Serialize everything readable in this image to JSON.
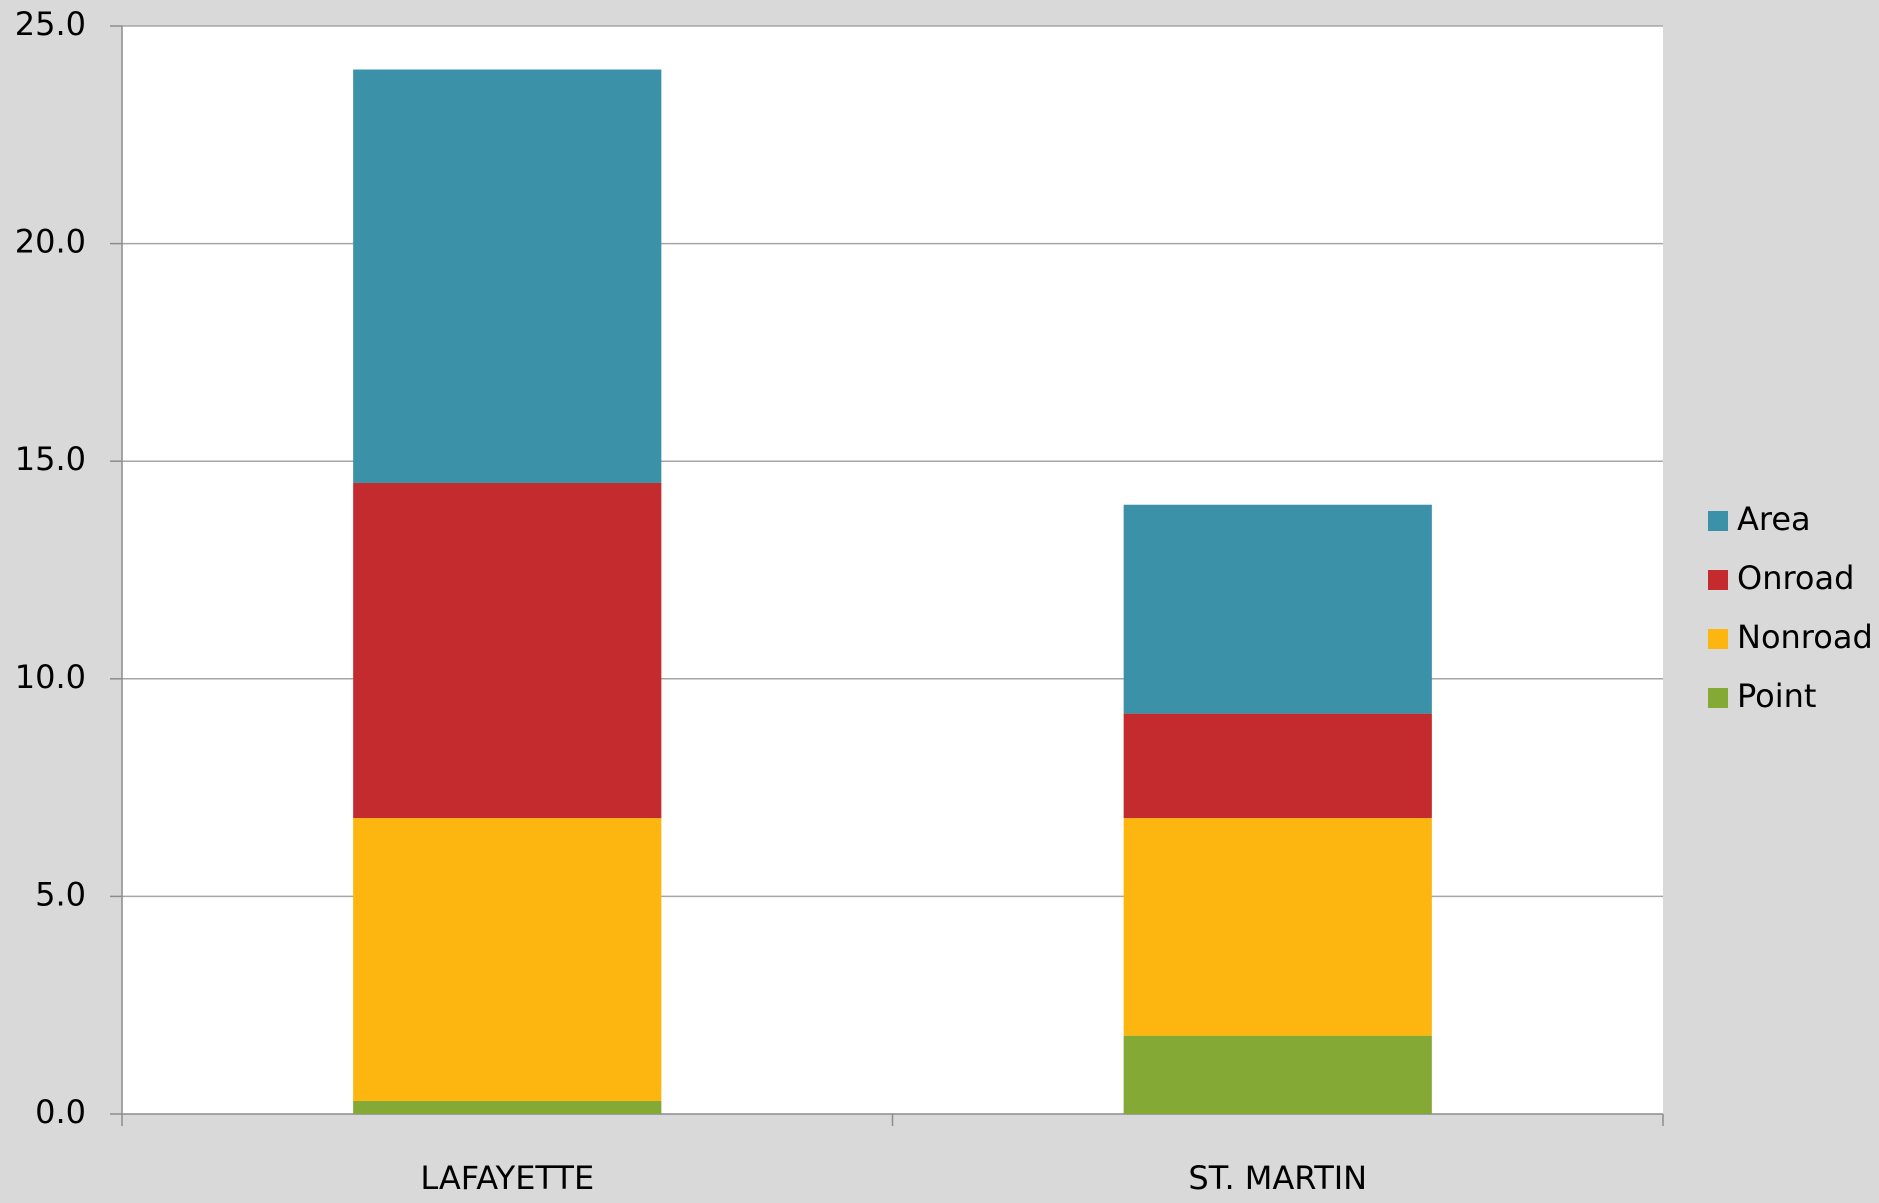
{
  "chart_data": {
    "type": "stacked_bar",
    "categories": [
      "LAFAYETTE",
      "ST. MARTIN"
    ],
    "series": [
      {
        "name": "Point",
        "color": "#85a935",
        "values": [
          0.3,
          1.8
        ]
      },
      {
        "name": "Nonroad",
        "color": "#fdb50f",
        "values": [
          6.5,
          5.0
        ]
      },
      {
        "name": "Onroad",
        "color": "#c32b2e",
        "values": [
          7.7,
          2.4
        ]
      },
      {
        "name": "Area",
        "color": "#3a91a8",
        "values": [
          9.5,
          4.8
        ]
      }
    ],
    "ylim": [
      0,
      25
    ],
    "yticks": [
      {
        "value": 0,
        "label": "0.0"
      },
      {
        "value": 5,
        "label": "5.0"
      },
      {
        "value": 10,
        "label": "10.0"
      },
      {
        "value": 15,
        "label": "15.0"
      },
      {
        "value": 20,
        "label": "20.0"
      },
      {
        "value": 25,
        "label": "25.0"
      }
    ],
    "grid": true,
    "legend": "right"
  }
}
